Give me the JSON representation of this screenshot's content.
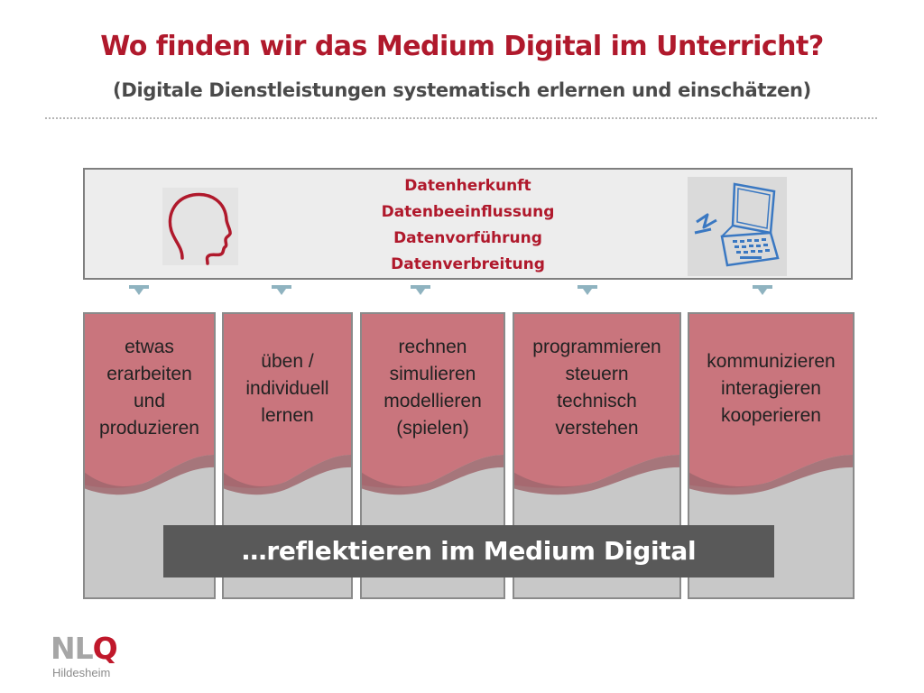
{
  "title": "Wo finden wir das Medium Digital im Unterricht?",
  "subtitle": "(Digitale Dienstleistungen systematisch erlernen und einschätzen)",
  "top_box": {
    "lines": [
      "Datenherkunft",
      "Datenbeeinflussung",
      "Datenvorführung",
      "Datenverbreitung"
    ],
    "left_icon": "human-head-outline-icon",
    "right_icon": "laptop-computer-icon"
  },
  "columns": [
    {
      "lines": [
        "etwas",
        "erarbeiten",
        "und",
        "produzieren"
      ]
    },
    {
      "lines": [
        "üben /",
        "individuell",
        "lernen"
      ]
    },
    {
      "lines": [
        "rechnen",
        "simulieren",
        "modellieren",
        "(spielen)"
      ]
    },
    {
      "lines": [
        "programmieren",
        "steuern",
        "technisch",
        "verstehen"
      ]
    },
    {
      "lines": [
        "kommunizieren",
        "interagieren",
        "kooperieren"
      ]
    }
  ],
  "banner": "…reflektieren im Medium Digital",
  "logo": {
    "text_nl": "NL",
    "text_q": "Q",
    "subtext": "Hildesheim"
  },
  "colors": {
    "accent_red": "#b0192c",
    "column_pink": "#c9757d",
    "column_grey": "#c8c8c8",
    "banner_grey": "#595959",
    "top_box_bg": "#ededed"
  }
}
